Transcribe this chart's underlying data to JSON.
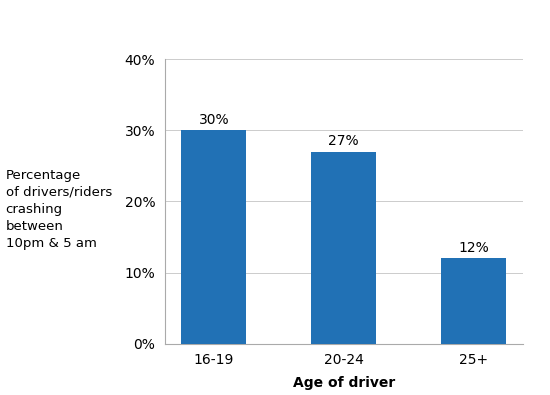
{
  "categories": [
    "16-19",
    "20-24",
    "25+"
  ],
  "values": [
    30,
    27,
    12
  ],
  "bar_color": "#2171b5",
  "ylabel_lines": [
    "Percentage",
    "of drivers/riders",
    "crashing",
    "between",
    "10pm & 5 am"
  ],
  "xlabel": "Age of driver",
  "ylim": [
    0,
    40
  ],
  "yticks": [
    0,
    10,
    20,
    30,
    40
  ],
  "ytick_labels": [
    "0%",
    "10%",
    "20%",
    "30%",
    "40%"
  ],
  "bar_labels": [
    "30%",
    "27%",
    "12%"
  ],
  "background_color": "#ffffff",
  "bar_label_fontsize": 10,
  "axis_fontsize": 10,
  "ylabel_fontsize": 9.5
}
